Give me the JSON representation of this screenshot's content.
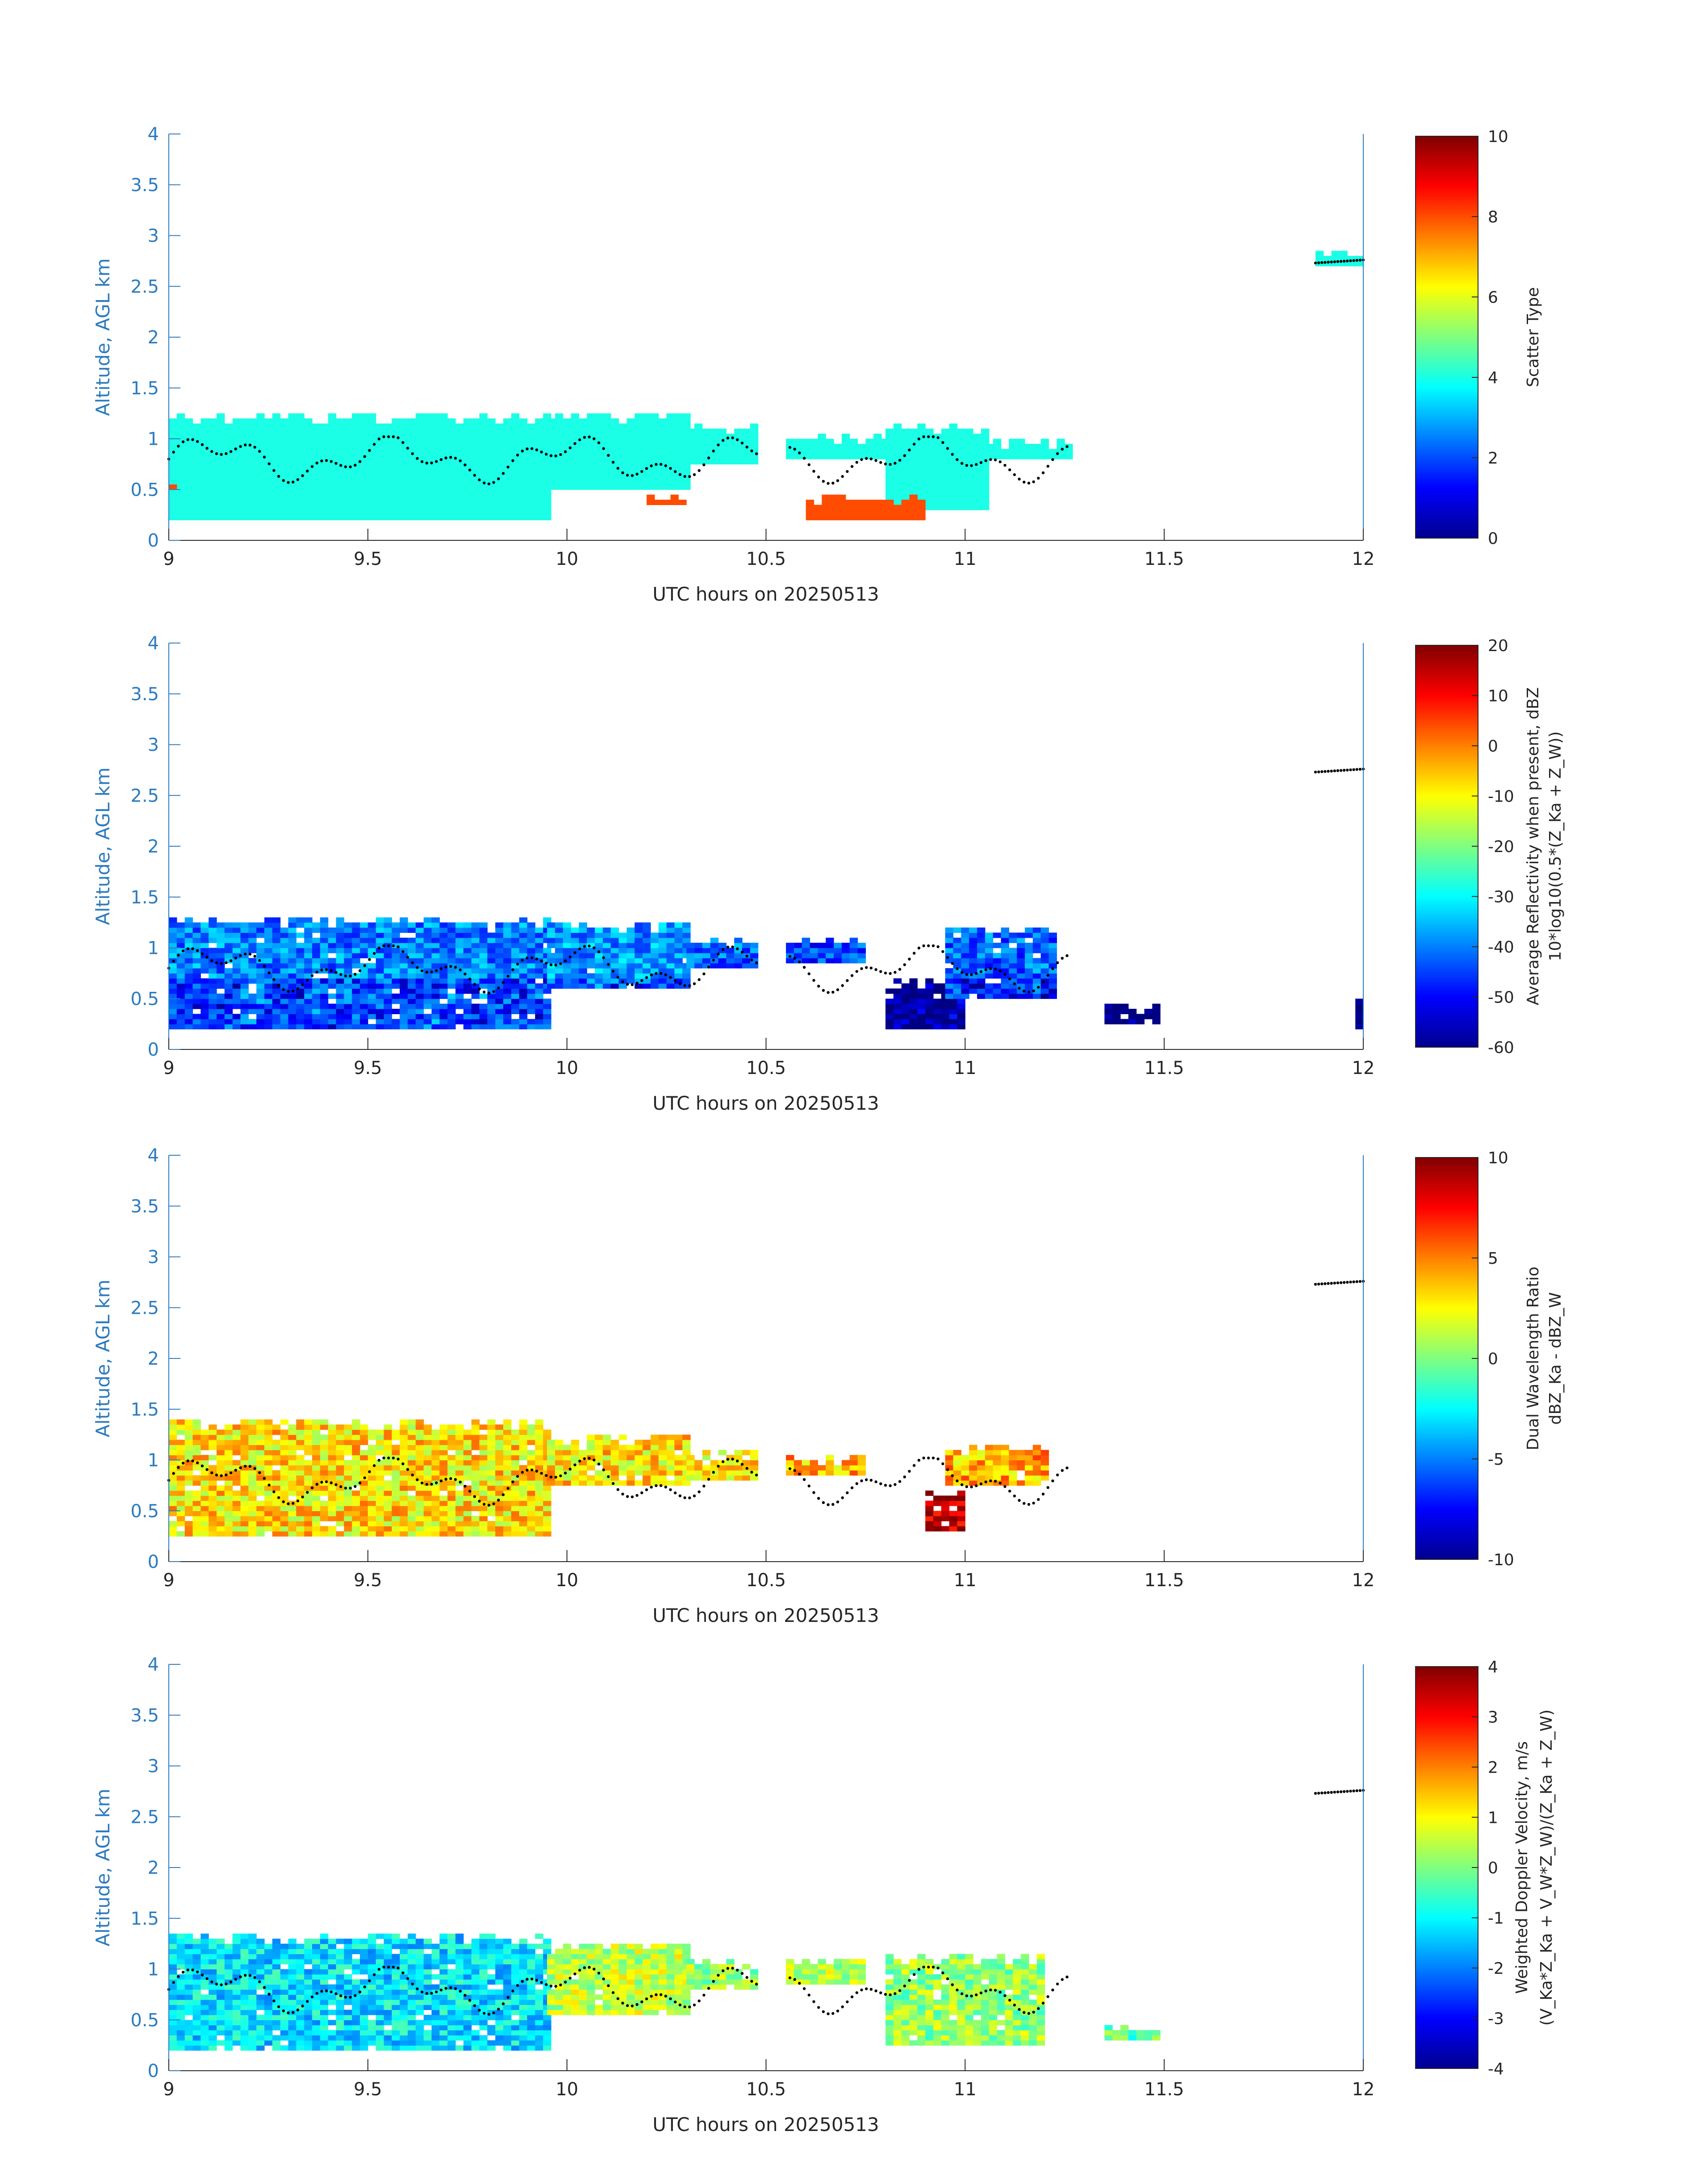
{
  "xlabel": "UTC hours on 20250513",
  "ylabel": "Altitude, AGL km",
  "x_ticks": [
    "9",
    "9.5",
    "10",
    "10.5",
    "11",
    "11.5",
    "12"
  ],
  "y_ticks": [
    "0",
    "0.5",
    "1",
    "1.5",
    "2",
    "2.5",
    "3",
    "3.5",
    "4"
  ],
  "axis_color": "#2c7bbf",
  "chart_data": [
    {
      "type": "heatmap",
      "name": "scatter-type",
      "xlabel": "UTC hours on 20250513",
      "ylabel": "Altitude, AGL km",
      "xlim": [
        9,
        12
      ],
      "ylim": [
        0,
        4
      ],
      "colorbar": {
        "label_lines": [
          "Scatter Type"
        ],
        "range": [
          0,
          10
        ],
        "ticks": [
          "0",
          "2",
          "4",
          "6",
          "8",
          "10"
        ]
      },
      "regions": [
        {
          "x": [
            9.0,
            9.95
          ],
          "y": [
            0.2,
            1.25
          ],
          "value": 4
        },
        {
          "x": [
            9.95,
            10.3
          ],
          "y": [
            0.5,
            1.25
          ],
          "value": 4
        },
        {
          "x": [
            10.3,
            10.48
          ],
          "y": [
            0.75,
            1.15
          ],
          "value": 4
        },
        {
          "x": [
            10.55,
            10.8
          ],
          "y": [
            0.8,
            1.05
          ],
          "value": 4
        },
        {
          "x": [
            10.8,
            11.05
          ],
          "y": [
            0.3,
            1.15
          ],
          "value": 4
        },
        {
          "x": [
            11.05,
            11.27
          ],
          "y": [
            0.8,
            1.0
          ],
          "value": 4
        },
        {
          "x": [
            11.88,
            12.0
          ],
          "y": [
            2.7,
            2.85
          ],
          "value": 4
        },
        {
          "x": [
            9.0,
            9.04
          ],
          "y": [
            0.5,
            0.6
          ],
          "value": 8
        },
        {
          "x": [
            10.6,
            10.9
          ],
          "y": [
            0.2,
            0.45
          ],
          "value": 8
        },
        {
          "x": [
            10.2,
            10.3
          ],
          "y": [
            0.35,
            0.45
          ],
          "value": 8
        }
      ]
    },
    {
      "type": "heatmap",
      "name": "average-reflectivity",
      "xlabel": "UTC hours on 20250513",
      "ylabel": "Altitude, AGL km",
      "xlim": [
        9,
        12
      ],
      "ylim": [
        0,
        4
      ],
      "colorbar": {
        "label_lines": [
          "Average Reflectivity when present, dBZ",
          "10*log10(0.5*(Z_Ka + Z_W))"
        ],
        "range": [
          -60,
          20
        ],
        "ticks": [
          "-60",
          "-50",
          "-40",
          "-30",
          "-20",
          "-10",
          "0",
          "10",
          "20"
        ]
      },
      "regions": [
        {
          "x": [
            9.0,
            9.95
          ],
          "y": [
            0.2,
            1.3
          ],
          "value": -40
        },
        {
          "x": [
            9.95,
            10.3
          ],
          "y": [
            0.6,
            1.25
          ],
          "value": -38
        },
        {
          "x": [
            10.3,
            10.48
          ],
          "y": [
            0.8,
            1.1
          ],
          "value": -42
        },
        {
          "x": [
            10.55,
            10.75
          ],
          "y": [
            0.85,
            1.1
          ],
          "value": -45
        },
        {
          "x": [
            10.8,
            11.0
          ],
          "y": [
            0.2,
            0.7
          ],
          "value": -55
        },
        {
          "x": [
            10.95,
            11.23
          ],
          "y": [
            0.5,
            1.2
          ],
          "value": -42
        },
        {
          "x": [
            11.35,
            11.48
          ],
          "y": [
            0.25,
            0.45
          ],
          "value": -58
        },
        {
          "x": [
            11.98,
            12.0
          ],
          "y": [
            0.2,
            0.5
          ],
          "value": -58
        }
      ]
    },
    {
      "type": "heatmap",
      "name": "dual-wavelength-ratio",
      "xlabel": "UTC hours on 20250513",
      "ylabel": "Altitude, AGL km",
      "xlim": [
        9,
        12
      ],
      "ylim": [
        0,
        4
      ],
      "colorbar": {
        "label_lines": [
          "Dual Wavelength Ratio",
          "dBZ_Ka - dBZ_W"
        ],
        "range": [
          -10,
          10
        ],
        "ticks": [
          "-10",
          "-5",
          "0",
          "5",
          "10"
        ]
      },
      "regions": [
        {
          "x": [
            9.0,
            9.95
          ],
          "y": [
            0.25,
            1.4
          ],
          "value": 3
        },
        {
          "x": [
            9.95,
            10.3
          ],
          "y": [
            0.75,
            1.25
          ],
          "value": 3
        },
        {
          "x": [
            10.3,
            10.48
          ],
          "y": [
            0.8,
            1.1
          ],
          "value": 3
        },
        {
          "x": [
            10.55,
            10.75
          ],
          "y": [
            0.85,
            1.05
          ],
          "value": 4
        },
        {
          "x": [
            10.9,
            11.0
          ],
          "y": [
            0.3,
            0.7
          ],
          "value": 9
        },
        {
          "x": [
            10.95,
            11.2
          ],
          "y": [
            0.75,
            1.15
          ],
          "value": 4
        }
      ]
    },
    {
      "type": "heatmap",
      "name": "weighted-doppler-velocity",
      "xlabel": "UTC hours on 20250513",
      "ylabel": "Altitude, AGL km",
      "xlim": [
        9,
        12
      ],
      "ylim": [
        0,
        4
      ],
      "colorbar": {
        "label_lines": [
          "Weighted Doppler Velocity, m/s",
          "(V_Ka*Z_Ka + V_W*Z_W)/(Z_Ka + Z_W)"
        ],
        "range": [
          -4,
          4
        ],
        "ticks": [
          "-4",
          "-3",
          "-2",
          "-1",
          "0",
          "1",
          "2",
          "3",
          "4"
        ]
      },
      "regions": [
        {
          "x": [
            9.0,
            9.95
          ],
          "y": [
            0.2,
            1.35
          ],
          "value": -1.2
        },
        {
          "x": [
            9.95,
            10.3
          ],
          "y": [
            0.55,
            1.25
          ],
          "value": 0.5
        },
        {
          "x": [
            10.3,
            10.48
          ],
          "y": [
            0.8,
            1.1
          ],
          "value": 0.3
        },
        {
          "x": [
            10.55,
            10.75
          ],
          "y": [
            0.85,
            1.1
          ],
          "value": 0.4
        },
        {
          "x": [
            10.8,
            11.2
          ],
          "y": [
            0.25,
            1.15
          ],
          "value": 0.2
        },
        {
          "x": [
            11.35,
            11.48
          ],
          "y": [
            0.3,
            0.45
          ],
          "value": -0.3
        }
      ]
    }
  ]
}
